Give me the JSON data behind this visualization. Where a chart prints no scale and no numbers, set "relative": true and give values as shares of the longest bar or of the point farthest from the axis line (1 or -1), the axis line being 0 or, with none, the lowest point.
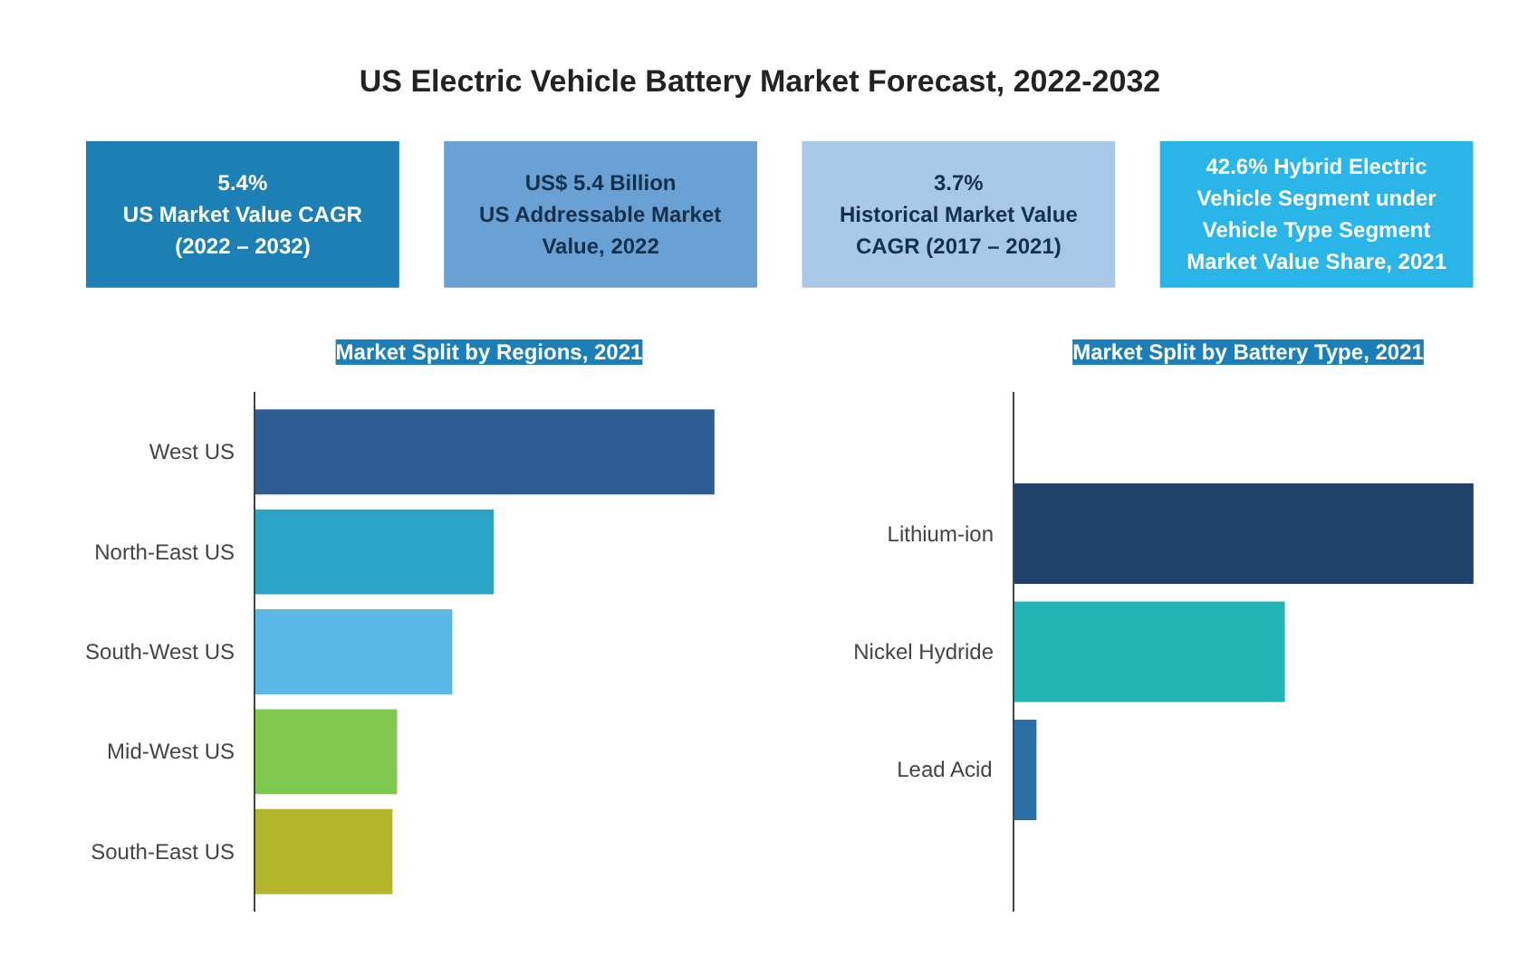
{
  "chart_data": [
    {
      "type": "other",
      "title": "US Electric Vehicle Battery Market Forecast, 2022-2032",
      "annotations": [
        "5.4%\nUS Market Value CAGR\n(2022 – 2032)",
        "US$ 5.4 Billion\nUS Addressable Market\nValue, 2022",
        "3.7%\nHistorical Market Value\nCAGR (2017 – 2021)",
        "42.6% Hybrid Electric\nVehicle Segment under\nVehicle Type Segment\nMarket Value Share, 2021"
      ]
    },
    {
      "type": "bar",
      "orientation": "horizontal",
      "relative": true,
      "title": "Market Split by Regions, 2021",
      "categories": [
        "West US",
        "North-East US",
        "South-West US",
        "Mid-West US",
        "South-East US"
      ],
      "values": [
        1,
        0.52,
        0.43,
        0.31,
        0.3
      ],
      "colors": [
        "#2e5d94",
        "#2aa3c4",
        "#5bb8e6",
        "#7ec850",
        "#b3b52a"
      ]
    },
    {
      "type": "bar",
      "orientation": "horizontal",
      "relative": true,
      "title": "Market Split by Battery Type, 2021",
      "categories": [
        "Lithium-ion",
        "Nickel Hydride",
        "Lead Acid"
      ],
      "values": [
        1,
        0.59,
        0.05
      ],
      "colors": [
        "#1f4068",
        "#22b5b5",
        "#2a6fa8"
      ]
    }
  ]
}
